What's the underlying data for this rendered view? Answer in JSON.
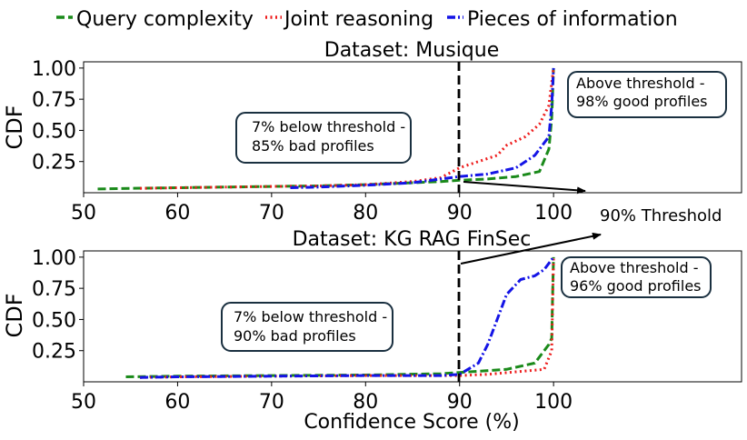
{
  "legend": [
    {
      "label": "Query complexity",
      "color": "#1a8a1a",
      "dash": "dashed"
    },
    {
      "label": "Joint reasoning",
      "color": "#ee1c1c",
      "dash": "dotted"
    },
    {
      "label": "Pieces of information",
      "color": "#1414e6",
      "dash": "dashdot"
    }
  ],
  "xlabel": "Confidence Score (%)",
  "threshold_label": "90% Threshold",
  "chart_data": [
    {
      "type": "line",
      "title": "Dataset: Musique",
      "xlabel": "",
      "ylabel": "CDF",
      "xlim": [
        50,
        120
      ],
      "ylim": [
        0,
        1.05
      ],
      "xticks": [
        50,
        60,
        70,
        80,
        90,
        100
      ],
      "yticks": [
        0.25,
        0.5,
        0.75,
        1.0
      ],
      "threshold": 90,
      "series": [
        {
          "name": "Query complexity",
          "points": [
            [
              51.5,
              0.03
            ],
            [
              55,
              0.035
            ],
            [
              60,
              0.04
            ],
            [
              65,
              0.045
            ],
            [
              70,
              0.05
            ],
            [
              75,
              0.055
            ],
            [
              80,
              0.065
            ],
            [
              85,
              0.08
            ],
            [
              88,
              0.09
            ],
            [
              90,
              0.1
            ],
            [
              93,
              0.11
            ],
            [
              96,
              0.13
            ],
            [
              98.5,
              0.17
            ],
            [
              99.5,
              0.35
            ],
            [
              99.8,
              0.6
            ],
            [
              100,
              1.0
            ]
          ]
        },
        {
          "name": "Joint reasoning",
          "points": [
            [
              56,
              0.035
            ],
            [
              60,
              0.04
            ],
            [
              65,
              0.045
            ],
            [
              70,
              0.05
            ],
            [
              75,
              0.055
            ],
            [
              80,
              0.065
            ],
            [
              85,
              0.09
            ],
            [
              88,
              0.12
            ],
            [
              90,
              0.2
            ],
            [
              92,
              0.25
            ],
            [
              94,
              0.3
            ],
            [
              95,
              0.38
            ],
            [
              97,
              0.45
            ],
            [
              98.5,
              0.55
            ],
            [
              99.5,
              0.7
            ],
            [
              100,
              1.0
            ]
          ]
        },
        {
          "name": "Pieces of information",
          "points": [
            [
              72,
              0.04
            ],
            [
              75,
              0.045
            ],
            [
              80,
              0.06
            ],
            [
              85,
              0.08
            ],
            [
              88,
              0.11
            ],
            [
              90,
              0.13
            ],
            [
              93,
              0.15
            ],
            [
              96,
              0.2
            ],
            [
              98,
              0.3
            ],
            [
              99.5,
              0.45
            ],
            [
              99.8,
              0.7
            ],
            [
              100,
              1.0
            ]
          ]
        }
      ],
      "annotations": [
        {
          "text_lines": [
            "7% below threshold -",
            "85% bad profiles"
          ]
        },
        {
          "text_lines": [
            "Above threshold -",
            "98% good profiles"
          ]
        }
      ]
    },
    {
      "type": "line",
      "title": "Dataset: KG RAG FinSec",
      "xlabel": "Confidence Score (%)",
      "ylabel": "CDF",
      "xlim": [
        50,
        120
      ],
      "ylim": [
        0,
        1.05
      ],
      "xticks": [
        50,
        60,
        70,
        80,
        90,
        100
      ],
      "yticks": [
        0.25,
        0.5,
        0.75,
        1.0
      ],
      "threshold": 90,
      "series": [
        {
          "name": "Query complexity",
          "points": [
            [
              54.5,
              0.04
            ],
            [
              60,
              0.045
            ],
            [
              70,
              0.05
            ],
            [
              80,
              0.055
            ],
            [
              88,
              0.065
            ],
            [
              90,
              0.075
            ],
            [
              95,
              0.1
            ],
            [
              98,
              0.15
            ],
            [
              99.5,
              0.3
            ],
            [
              99.8,
              0.35
            ],
            [
              99.9,
              0.7
            ],
            [
              100,
              1.0
            ]
          ]
        },
        {
          "name": "Joint reasoning",
          "points": [
            [
              56,
              0.035
            ],
            [
              60,
              0.04
            ],
            [
              70,
              0.045
            ],
            [
              80,
              0.05
            ],
            [
              88,
              0.05
            ],
            [
              90,
              0.05
            ],
            [
              93,
              0.06
            ],
            [
              96,
              0.08
            ],
            [
              99,
              0.1
            ],
            [
              99.8,
              0.25
            ],
            [
              100,
              1.0
            ]
          ]
        },
        {
          "name": "Pieces of information",
          "points": [
            [
              56,
              0.035
            ],
            [
              60,
              0.04
            ],
            [
              70,
              0.045
            ],
            [
              80,
              0.05
            ],
            [
              88,
              0.05
            ],
            [
              90,
              0.06
            ],
            [
              92,
              0.15
            ],
            [
              93,
              0.3
            ],
            [
              94,
              0.5
            ],
            [
              95,
              0.7
            ],
            [
              96.5,
              0.82
            ],
            [
              98,
              0.85
            ],
            [
              99,
              0.9
            ],
            [
              100,
              1.0
            ]
          ]
        }
      ],
      "annotations": [
        {
          "text_lines": [
            "7% below threshold -",
            "90% bad profiles"
          ]
        },
        {
          "text_lines": [
            "Above threshold -",
            "96% good profiles"
          ]
        }
      ]
    }
  ]
}
